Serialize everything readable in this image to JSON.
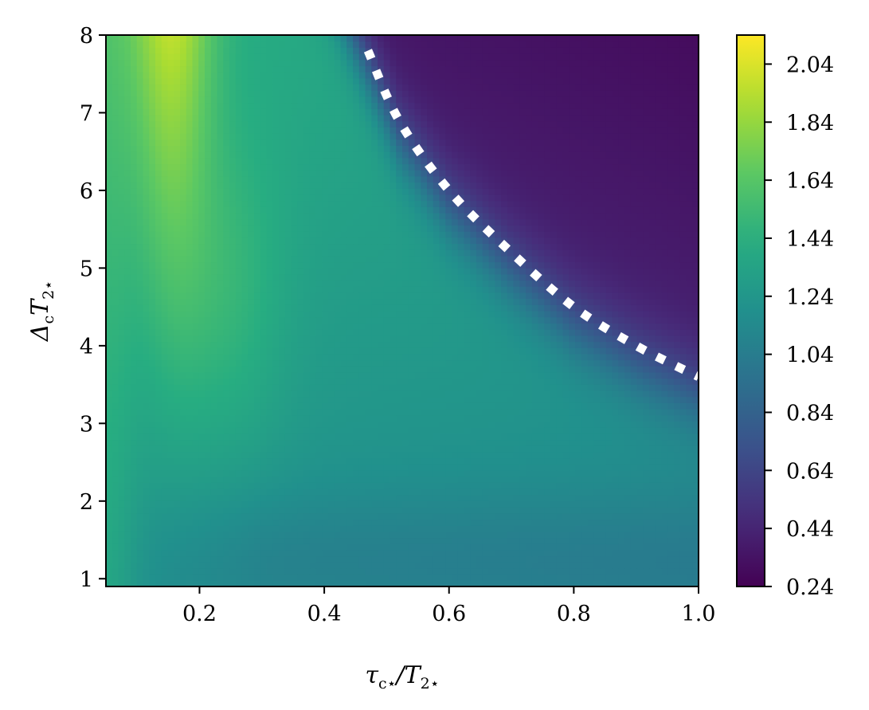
{
  "chart_data": {
    "type": "heatmap",
    "title": "",
    "xlabel": {
      "main": "τ",
      "main_sub": "c⋆",
      "slash": "/T",
      "tail_sub": "2⋆"
    },
    "ylabel": {
      "main": "Δ",
      "main_sub": "c",
      "mid": "T",
      "tail_sub": "2⋆"
    },
    "xlim": [
      0.05,
      1.0
    ],
    "ylim": [
      0.9,
      8.0
    ],
    "x_ticks": [
      0.2,
      0.4,
      0.6,
      0.8,
      1.0
    ],
    "x_tick_labels": [
      "0.2",
      "0.4",
      "0.6",
      "0.8",
      "1.0"
    ],
    "y_ticks": [
      1,
      2,
      3,
      4,
      5,
      6,
      7,
      8
    ],
    "y_tick_labels": [
      "1",
      "2",
      "3",
      "4",
      "5",
      "6",
      "7",
      "8"
    ],
    "colorbar": {
      "colormap": "viridis",
      "min": 0.24,
      "max": 2.14,
      "ticks": [
        0.24,
        0.44,
        0.64,
        0.84,
        1.04,
        1.24,
        1.44,
        1.64,
        1.84,
        2.04
      ],
      "tick_labels": [
        "0.24",
        "0.44",
        "0.64",
        "0.84",
        "1.04",
        "1.24",
        "1.44",
        "1.64",
        "1.84",
        "2.04"
      ]
    },
    "boundary_curve": {
      "style": "dotted",
      "color": "#ffffff",
      "points": [
        [
          0.47,
          7.8
        ],
        [
          0.52,
          6.9
        ],
        [
          0.6,
          6.0
        ],
        [
          0.7,
          5.2
        ],
        [
          0.8,
          4.5
        ],
        [
          0.9,
          4.0
        ],
        [
          1.0,
          3.6
        ]
      ]
    },
    "grid": false,
    "legend": "none"
  }
}
